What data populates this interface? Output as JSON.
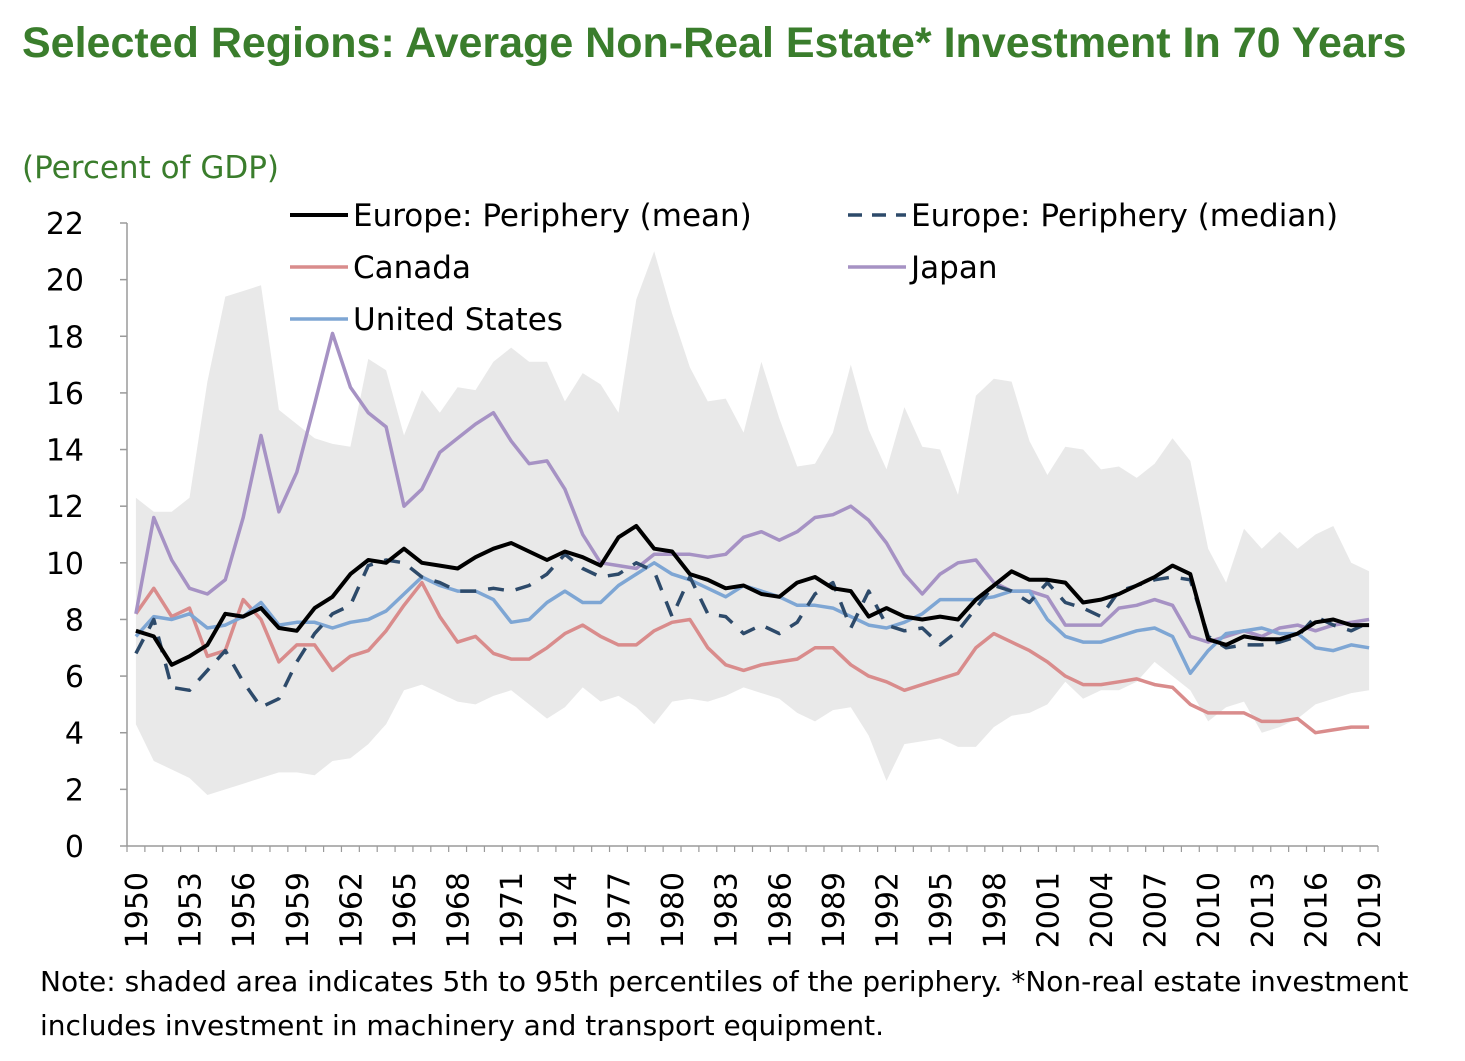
{
  "chart_data": {
    "type": "line",
    "title": "Selected Regions: Average Non-Real Estate* Investment In 70 Years",
    "subtitle": "(Percent of GDP)",
    "note": "Note: shaded area indicates 5th to 95th percentiles of the periphery. *Non-real estate investment includes investment in machinery and transport equipment.",
    "xlabel": "",
    "ylabel": "",
    "ylim": [
      0,
      22
    ],
    "yticks": [
      "0",
      "2",
      "4",
      "6",
      "8",
      "10",
      "12",
      "14",
      "16",
      "18",
      "20",
      "22"
    ],
    "xticks": [
      "1950",
      "1953",
      "1956",
      "1959",
      "1962",
      "1965",
      "1968",
      "1971",
      "1974",
      "1977",
      "1980",
      "1983",
      "1986",
      "1989",
      "1992",
      "1995",
      "1998",
      "2001",
      "2004",
      "2007",
      "2010",
      "2013",
      "2016",
      "2019"
    ],
    "x": [
      1950,
      1951,
      1952,
      1953,
      1954,
      1955,
      1956,
      1957,
      1958,
      1959,
      1960,
      1961,
      1962,
      1963,
      1964,
      1965,
      1966,
      1967,
      1968,
      1969,
      1970,
      1971,
      1972,
      1973,
      1974,
      1975,
      1976,
      1977,
      1978,
      1979,
      1980,
      1981,
      1982,
      1983,
      1984,
      1985,
      1986,
      1987,
      1988,
      1989,
      1990,
      1991,
      1992,
      1993,
      1994,
      1995,
      1996,
      1997,
      1998,
      1999,
      2000,
      2001,
      2002,
      2003,
      2004,
      2005,
      2006,
      2007,
      2008,
      2009,
      2010,
      2011,
      2012,
      2013,
      2014,
      2015,
      2016,
      2017,
      2018,
      2019
    ],
    "band": {
      "name": "5th to 95th percentiles of the periphery",
      "color": "#e9e9e9",
      "upper": [
        12.3,
        11.8,
        11.8,
        12.3,
        16.4,
        19.4,
        19.6,
        19.8,
        15.4,
        14.9,
        14.4,
        14.2,
        14.1,
        17.2,
        16.8,
        14.5,
        16.1,
        15.3,
        16.2,
        16.1,
        17.1,
        17.6,
        17.1,
        17.1,
        15.7,
        16.7,
        16.3,
        15.3,
        19.3,
        21.0,
        18.8,
        16.9,
        15.7,
        15.8,
        14.6,
        17.1,
        15.1,
        13.4,
        13.5,
        14.6,
        17.0,
        14.7,
        13.3,
        15.5,
        14.1,
        14.0,
        12.4,
        15.9,
        16.5,
        16.4,
        14.3,
        13.1,
        14.1,
        14.0,
        13.3,
        13.4,
        13.0,
        13.5,
        14.4,
        13.6,
        10.5,
        9.3,
        11.2,
        10.5,
        11.1,
        10.5,
        11.0,
        11.3,
        10.0,
        9.7
      ],
      "lower": [
        4.3,
        3.0,
        2.7,
        2.4,
        1.8,
        2.0,
        2.2,
        2.4,
        2.6,
        2.6,
        2.5,
        3.0,
        3.1,
        3.6,
        4.3,
        5.5,
        5.7,
        5.4,
        5.1,
        5.0,
        5.3,
        5.5,
        5.0,
        4.5,
        4.9,
        5.6,
        5.1,
        5.3,
        4.9,
        4.3,
        5.1,
        5.2,
        5.1,
        5.3,
        5.6,
        5.4,
        5.2,
        4.7,
        4.4,
        4.8,
        4.9,
        3.9,
        2.3,
        3.6,
        3.7,
        3.8,
        3.5,
        3.5,
        4.2,
        4.6,
        4.7,
        5.0,
        5.8,
        5.2,
        5.5,
        5.5,
        5.8,
        6.5,
        6.0,
        5.5,
        4.4,
        4.9,
        5.1,
        4.0,
        4.2,
        4.5,
        5.0,
        5.2,
        5.4,
        5.5
      ]
    },
    "series": [
      {
        "name": "Europe: Periphery (mean)",
        "color": "#000000",
        "dash": "",
        "width": 4,
        "values": [
          7.6,
          7.4,
          6.4,
          6.7,
          7.1,
          8.2,
          8.1,
          8.4,
          7.7,
          7.6,
          8.4,
          8.8,
          9.6,
          10.1,
          10.0,
          10.5,
          10.0,
          9.9,
          9.8,
          10.2,
          10.5,
          10.7,
          10.4,
          10.1,
          10.4,
          10.2,
          9.9,
          10.9,
          11.3,
          10.5,
          10.4,
          9.6,
          9.4,
          9.1,
          9.2,
          8.9,
          8.8,
          9.3,
          9.5,
          9.1,
          9.0,
          8.1,
          8.4,
          8.1,
          8.0,
          8.1,
          8.0,
          8.7,
          9.2,
          9.7,
          9.4,
          9.4,
          9.3,
          8.6,
          8.7,
          8.9,
          9.2,
          9.5,
          9.9,
          9.6,
          7.3,
          7.1,
          7.4,
          7.3,
          7.3,
          7.5,
          7.9,
          8.0,
          7.8,
          7.8
        ]
      },
      {
        "name": "Europe: Periphery (median)",
        "color": "#2d4a6a",
        "dash": "16,12",
        "width": 3.5,
        "values": [
          6.8,
          8.0,
          5.6,
          5.5,
          6.2,
          6.9,
          5.8,
          4.9,
          5.2,
          6.5,
          7.5,
          8.2,
          8.5,
          9.9,
          10.1,
          10.0,
          9.5,
          9.3,
          9.0,
          9.0,
          9.1,
          9.0,
          9.2,
          9.6,
          10.3,
          9.8,
          9.5,
          9.6,
          10.0,
          9.7,
          8.1,
          9.5,
          8.2,
          8.1,
          7.5,
          7.8,
          7.5,
          7.9,
          8.9,
          9.3,
          7.7,
          9.0,
          7.8,
          7.6,
          7.7,
          7.1,
          7.6,
          8.4,
          9.2,
          9.0,
          8.6,
          9.3,
          8.6,
          8.4,
          8.1,
          9.0,
          9.2,
          9.4,
          9.5,
          9.4,
          7.4,
          7.0,
          7.1,
          7.1,
          7.2,
          7.4,
          8.1,
          7.8,
          7.6,
          7.9
        ]
      },
      {
        "name": "Canada",
        "color": "#d98c8c",
        "dash": "",
        "width": 3.5,
        "values": [
          8.2,
          9.1,
          8.1,
          8.4,
          6.7,
          6.9,
          8.7,
          8.0,
          6.5,
          7.1,
          7.1,
          6.2,
          6.7,
          6.9,
          7.6,
          8.5,
          9.3,
          8.1,
          7.2,
          7.4,
          6.8,
          6.6,
          6.6,
          7.0,
          7.5,
          7.8,
          7.4,
          7.1,
          7.1,
          7.6,
          7.9,
          8.0,
          7.0,
          6.4,
          6.2,
          6.4,
          6.5,
          6.6,
          7.0,
          7.0,
          6.4,
          6.0,
          5.8,
          5.5,
          5.7,
          5.9,
          6.1,
          7.0,
          7.5,
          7.2,
          6.9,
          6.5,
          6.0,
          5.7,
          5.7,
          5.8,
          5.9,
          5.7,
          5.6,
          5.0,
          4.7,
          4.7,
          4.7,
          4.4,
          4.4,
          4.5,
          4.0,
          4.1,
          4.2,
          4.2
        ]
      },
      {
        "name": "Japan",
        "color": "#a692c4",
        "dash": "",
        "width": 3.5,
        "values": [
          8.2,
          11.6,
          10.1,
          9.1,
          8.9,
          9.4,
          11.6,
          14.5,
          11.8,
          13.2,
          15.6,
          18.1,
          16.2,
          15.3,
          14.8,
          12.0,
          12.6,
          13.9,
          14.4,
          14.9,
          15.3,
          14.3,
          13.5,
          13.6,
          12.6,
          11.0,
          10.0,
          9.9,
          9.8,
          10.3,
          10.3,
          10.3,
          10.2,
          10.3,
          10.9,
          11.1,
          10.8,
          11.1,
          11.6,
          11.7,
          12.0,
          11.5,
          10.7,
          9.6,
          8.9,
          9.6,
          10.0,
          10.1,
          9.3,
          9.0,
          9.0,
          8.8,
          7.8,
          7.8,
          7.8,
          8.4,
          8.5,
          8.7,
          8.5,
          7.4,
          7.2,
          7.4,
          7.6,
          7.4,
          7.7,
          7.8,
          7.6,
          7.8,
          7.9,
          8.0
        ]
      },
      {
        "name": "United States",
        "color": "#7ea6d4",
        "dash": "",
        "width": 3.5,
        "values": [
          7.4,
          8.1,
          8.0,
          8.2,
          7.7,
          7.8,
          8.1,
          8.6,
          7.8,
          7.9,
          7.9,
          7.7,
          7.9,
          8.0,
          8.3,
          8.9,
          9.5,
          9.2,
          9.0,
          9.0,
          8.7,
          7.9,
          8.0,
          8.6,
          9.0,
          8.6,
          8.6,
          9.2,
          9.6,
          10.0,
          9.6,
          9.4,
          9.1,
          8.8,
          9.2,
          9.0,
          8.8,
          8.5,
          8.5,
          8.4,
          8.1,
          7.8,
          7.7,
          7.9,
          8.2,
          8.7,
          8.7,
          8.7,
          8.8,
          9.0,
          9.0,
          8.0,
          7.4,
          7.2,
          7.2,
          7.4,
          7.6,
          7.7,
          7.4,
          6.1,
          6.9,
          7.5,
          7.6,
          7.7,
          7.5,
          7.5,
          7.0,
          6.9,
          7.1,
          7.0
        ]
      }
    ],
    "legend": {
      "position": "top",
      "columns": 2
    }
  }
}
